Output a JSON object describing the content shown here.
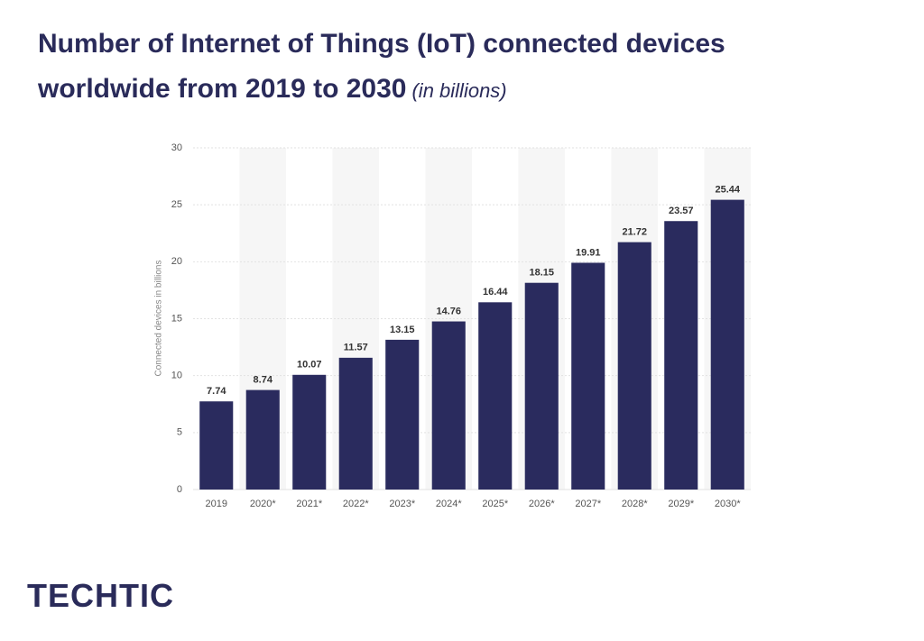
{
  "chart_data": {
    "type": "bar",
    "title": "Number of Internet of Things (IoT) connected devices worldwide from 2019 to 2030",
    "subtitle": "(in billions)",
    "y_label": "Connected devices in billions",
    "categories": [
      "2019",
      "2020*",
      "2021*",
      "2022*",
      "2023*",
      "2024*",
      "2025*",
      "2026*",
      "2027*",
      "2028*",
      "2029*",
      "2030*"
    ],
    "values": [
      7.74,
      8.74,
      10.07,
      11.57,
      13.15,
      14.76,
      16.44,
      18.15,
      19.91,
      21.72,
      23.57,
      25.44
    ],
    "color": "#2a2b5e",
    "ylim": [
      0,
      30
    ],
    "yticks": [
      0,
      5,
      10,
      15,
      20,
      25,
      30
    ],
    "grid": true
  },
  "brand": "TECHTIC"
}
